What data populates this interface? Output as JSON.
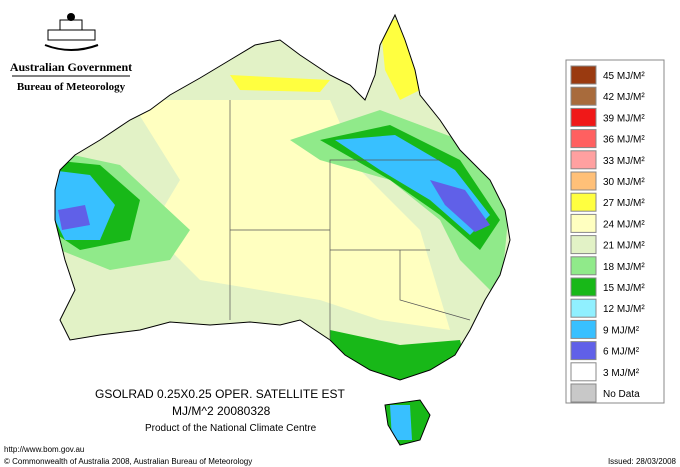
{
  "header": {
    "government": "Australian Government",
    "bureau": "Bureau of Meteorology"
  },
  "legend": {
    "items": [
      {
        "label": "45 MJ/M²",
        "color": "#9a3a10"
      },
      {
        "label": "42 MJ/M²",
        "color": "#a86b3c"
      },
      {
        "label": "39 MJ/M²",
        "color": "#f01818"
      },
      {
        "label": "36 MJ/M²",
        "color": "#ff6060"
      },
      {
        "label": "33 MJ/M²",
        "color": "#ffa0a0"
      },
      {
        "label": "30 MJ/M²",
        "color": "#ffc078"
      },
      {
        "label": "27 MJ/M²",
        "color": "#ffff40"
      },
      {
        "label": "24 MJ/M²",
        "color": "#ffffc0"
      },
      {
        "label": "21 MJ/M²",
        "color": "#e2f2c6"
      },
      {
        "label": "18 MJ/M²",
        "color": "#90ea8a"
      },
      {
        "label": "15 MJ/M²",
        "color": "#18b818"
      },
      {
        "label": "12 MJ/M²",
        "color": "#90f0ff"
      },
      {
        "label": "9 MJ/M²",
        "color": "#38c0ff"
      },
      {
        "label": "6 MJ/M²",
        "color": "#6060e8"
      },
      {
        "label": "3 MJ/M²",
        "color": "#ffffff"
      },
      {
        "label": "No Data",
        "color": "#c8c8c8"
      }
    ]
  },
  "footer": {
    "product": "GSOLRAD    0.25X0.25 OPER. SATELLITE EST",
    "units_date": "MJ/M^2  20080328",
    "centre": "Product of the National Climate Centre",
    "url": "http://www.bom.gov.au",
    "copyright": "© Commonwealth of Australia 2008, Australian Bureau of Meteorology",
    "issued": "Issued: 28/03/2008"
  }
}
